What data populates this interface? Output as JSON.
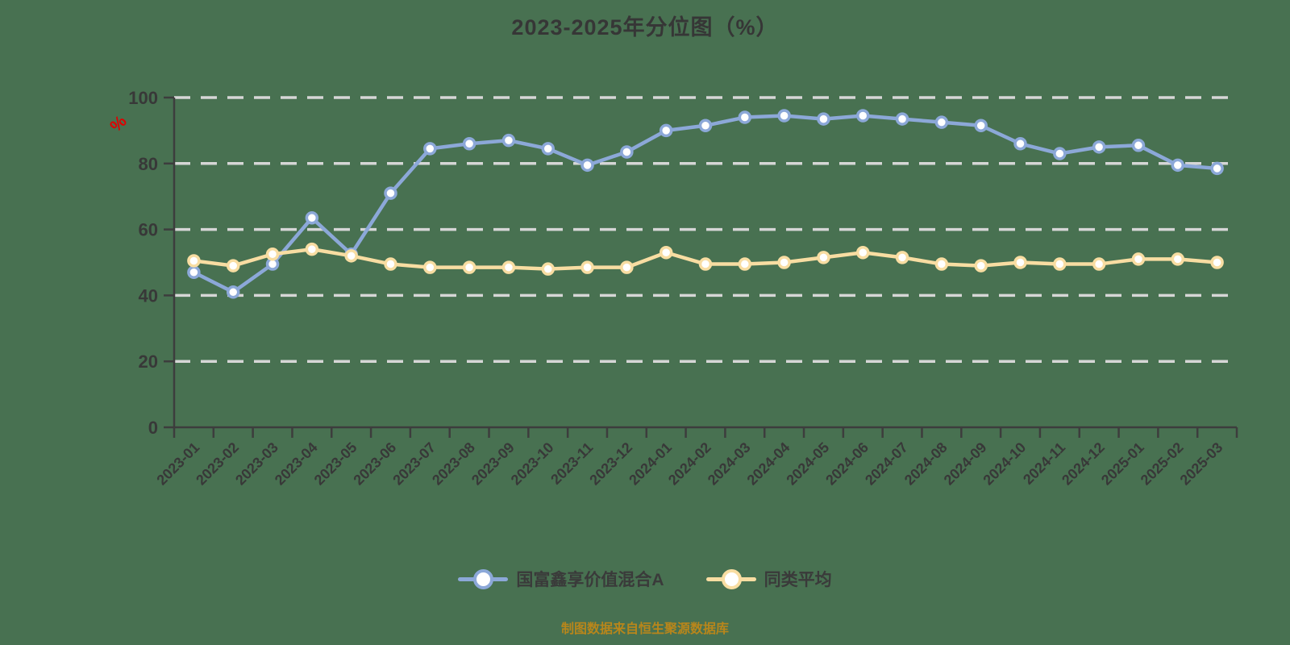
{
  "title": "2023-2025年分位图（%）",
  "y_axis_unit_label": "%",
  "footer": "制图数据来自恒生聚源数据库",
  "colors": {
    "background": "#487151",
    "title_text": "#363636",
    "axis": "#3d3d3d",
    "tick_label": "#383838",
    "gridline": "#d6d6d6",
    "series_fund": "#8ca8d8",
    "series_average": "#f8dda2",
    "marker_fill": "#ffffff",
    "unit_label_red": "#e00000",
    "footer_text": "#b8861b"
  },
  "legend": [
    {
      "label": "国富鑫享价值混合A",
      "color": "#8ca8d8"
    },
    {
      "label": "同类平均",
      "color": "#f8dda2"
    }
  ],
  "chart_data": {
    "type": "line",
    "title": "2023-2025年分位图（%）",
    "categories": [
      "2023-01",
      "2023-02",
      "2023-03",
      "2023-04",
      "2023-05",
      "2023-06",
      "2023-07",
      "2023-08",
      "2023-09",
      "2023-10",
      "2023-11",
      "2023-12",
      "2024-01",
      "2024-02",
      "2024-03",
      "2024-04",
      "2024-05",
      "2024-06",
      "2024-07",
      "2024-08",
      "2024-09",
      "2024-10",
      "2024-11",
      "2024-12",
      "2025-01",
      "2025-02",
      "2025-03"
    ],
    "series": [
      {
        "name": "国富鑫享价值混合A",
        "color": "#8ca8d8",
        "values": [
          47,
          41,
          49.5,
          63.5,
          52.5,
          71,
          84.5,
          86,
          87,
          84.5,
          79.5,
          83.5,
          90,
          91.5,
          94,
          94.5,
          93.5,
          94.5,
          93.5,
          92.5,
          91.5,
          86,
          83,
          85,
          85.5,
          79.5,
          78.5
        ]
      },
      {
        "name": "同类平均",
        "color": "#f8dda2",
        "values": [
          50.5,
          49,
          52.5,
          54,
          52,
          49.5,
          48.5,
          48.5,
          48.5,
          48,
          48.5,
          48.5,
          53,
          49.5,
          49.5,
          50,
          51.5,
          53,
          51.5,
          49.5,
          49,
          50,
          49.5,
          49.5,
          51,
          51,
          50
        ]
      }
    ],
    "ylim": [
      0,
      100
    ],
    "y_ticks": [
      0,
      20,
      40,
      60,
      80,
      100
    ],
    "ylabel": "%",
    "xlabel": "",
    "grid": "horizontal dashed",
    "x_label_rotation": -45,
    "legend_position": "bottom"
  }
}
